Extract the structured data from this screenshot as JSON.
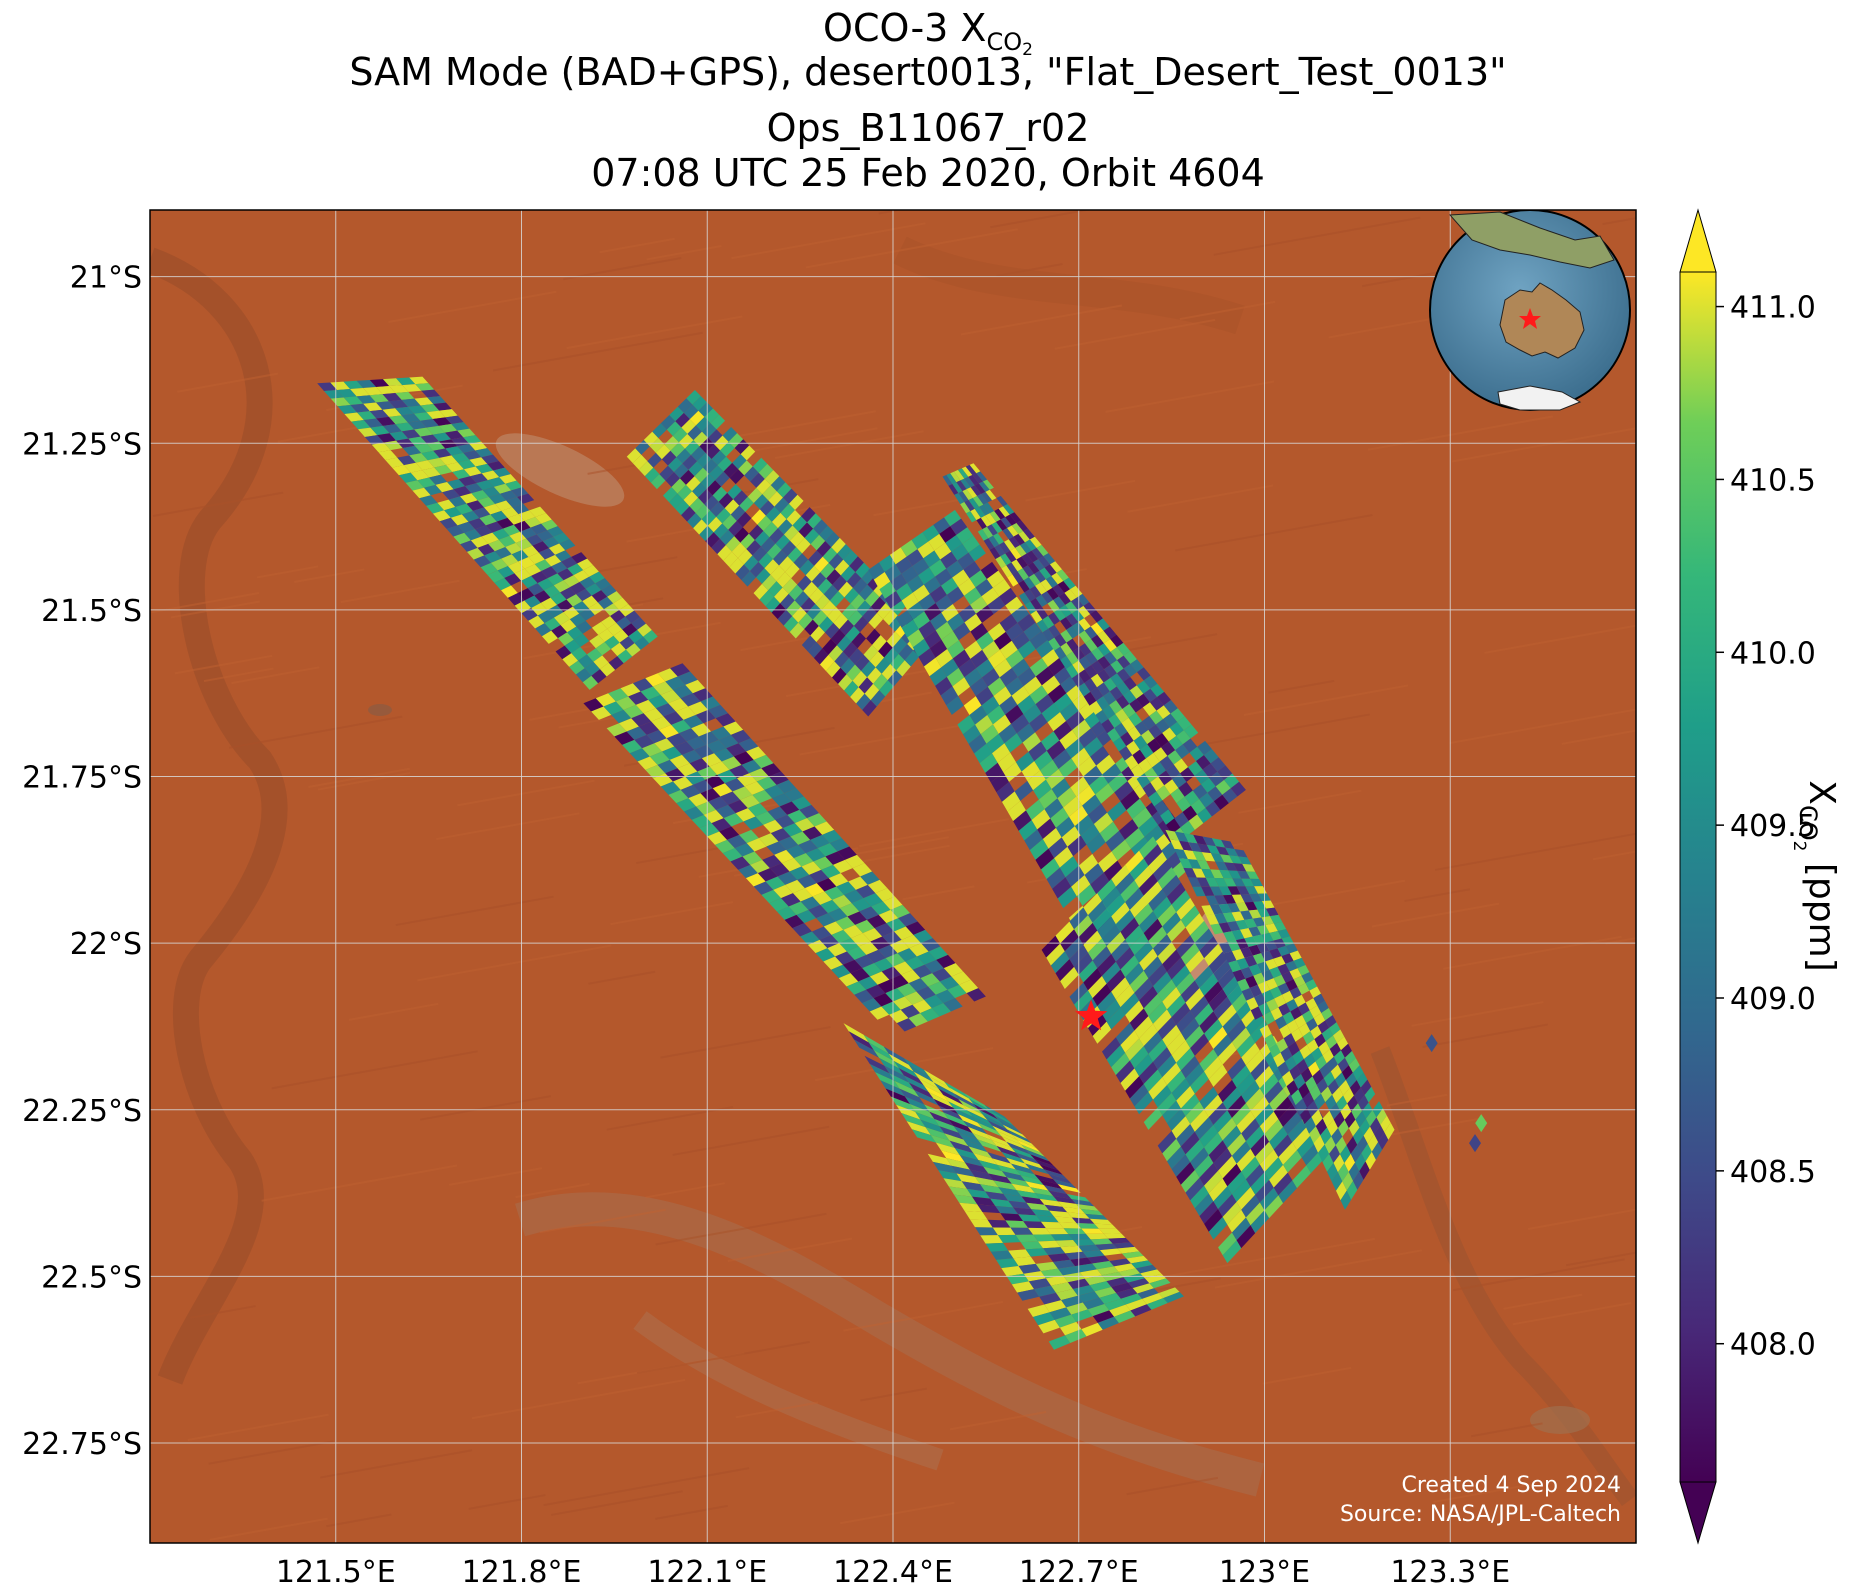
{
  "title": {
    "line1_prefix": "OCO-3 X",
    "line1_sub": "CO",
    "line1_subsub": "2",
    "line2": "SAM Mode (BAD+GPS), desert0013, \"Flat_Desert_Test_0013\"",
    "line3": "Ops_B11067_r02",
    "line4": "07:08 UTC 25 Feb 2020, Orbit 4604"
  },
  "map": {
    "lon_range": [
      121.2,
      123.6
    ],
    "lat_range": [
      -22.9,
      -20.9
    ],
    "lon_ticks": [
      {
        "value": 121.5,
        "label": "121.5°E"
      },
      {
        "value": 121.8,
        "label": "121.8°E"
      },
      {
        "value": 122.1,
        "label": "122.1°E"
      },
      {
        "value": 122.4,
        "label": "122.4°E"
      },
      {
        "value": 122.7,
        "label": "122.7°E"
      },
      {
        "value": 123.0,
        "label": "123°E"
      },
      {
        "value": 123.3,
        "label": "123.3°E"
      }
    ],
    "lat_ticks": [
      {
        "value": -21.0,
        "label": "21°S"
      },
      {
        "value": -21.25,
        "label": "21.25°S"
      },
      {
        "value": -21.5,
        "label": "21.5°S"
      },
      {
        "value": -21.75,
        "label": "21.75°S"
      },
      {
        "value": -22.0,
        "label": "22°S"
      },
      {
        "value": -22.25,
        "label": "22.25°S"
      },
      {
        "value": -22.5,
        "label": "22.5°S"
      },
      {
        "value": -22.75,
        "label": "22.75°S"
      }
    ],
    "grid": true,
    "basemap": "satellite imagery, red desert (Western Australia)",
    "target_marker": {
      "lon": 122.72,
      "lat": -22.11,
      "symbol": "red star"
    },
    "inset": "globe centered on Australia with red star at target location",
    "credits": [
      "Created 4 Sep 2024",
      "Source: NASA/JPL-Caltech"
    ],
    "colors": {
      "desert": "#b4582c",
      "desert_dark": "#8f4a2a",
      "grid": "#d8d8d8",
      "ocean": "#4f87a8",
      "star": "#ff1a1a"
    }
  },
  "swaths": [
    {
      "corners": [
        [
          121.47,
          -21.16
        ],
        [
          121.64,
          -21.15
        ],
        [
          122.02,
          -21.54
        ],
        [
          121.91,
          -21.62
        ]
      ]
    },
    {
      "corners": [
        [
          121.9,
          -21.64
        ],
        [
          122.06,
          -21.58
        ],
        [
          122.55,
          -22.08
        ],
        [
          122.4,
          -22.14
        ]
      ]
    },
    {
      "corners": [
        [
          122.32,
          -22.12
        ],
        [
          122.58,
          -22.26
        ],
        [
          122.87,
          -22.53
        ],
        [
          122.66,
          -22.61
        ]
      ]
    },
    {
      "corners": [
        [
          121.97,
          -21.27
        ],
        [
          122.08,
          -21.17
        ],
        [
          122.47,
          -21.54
        ],
        [
          122.36,
          -21.66
        ]
      ]
    },
    {
      "corners": [
        [
          122.36,
          -21.44
        ],
        [
          122.5,
          -21.35
        ],
        [
          122.9,
          -21.87
        ],
        [
          122.72,
          -22.02
        ]
      ]
    },
    {
      "corners": [
        [
          122.48,
          -21.3
        ],
        [
          122.53,
          -21.28
        ],
        [
          122.97,
          -21.77
        ],
        [
          122.86,
          -21.85
        ]
      ]
    },
    {
      "corners": [
        [
          122.64,
          -22.01
        ],
        [
          122.82,
          -21.84
        ],
        [
          123.12,
          -22.3
        ],
        [
          122.94,
          -22.48
        ]
      ]
    },
    {
      "corners": [
        [
          122.84,
          -21.83
        ],
        [
          122.96,
          -21.85
        ],
        [
          123.21,
          -22.28
        ],
        [
          123.13,
          -22.4
        ]
      ]
    }
  ],
  "isolated_soundings": [
    {
      "lon": 123.27,
      "lat": -22.15,
      "value": 408.6
    },
    {
      "lon": 123.35,
      "lat": -22.27,
      "value": 410.6
    },
    {
      "lon": 123.34,
      "lat": -22.3,
      "value": 408.4
    }
  ],
  "chart_data": {
    "type": "heatmap",
    "variable": "XCO2",
    "colorbar": {
      "colormap": "viridis",
      "range": [
        407.6,
        411.1
      ],
      "ticks": [
        408.0,
        408.5,
        409.0,
        409.5,
        410.0,
        410.5,
        411.0
      ],
      "tick_labels": [
        "408.0",
        "408.5",
        "409.0",
        "409.5",
        "410.0",
        "410.5",
        "411.0"
      ],
      "extend": "both",
      "label_prefix": "X",
      "label_sub": "CO",
      "label_subsub": "2",
      "label_suffix": " [ppm]"
    }
  }
}
